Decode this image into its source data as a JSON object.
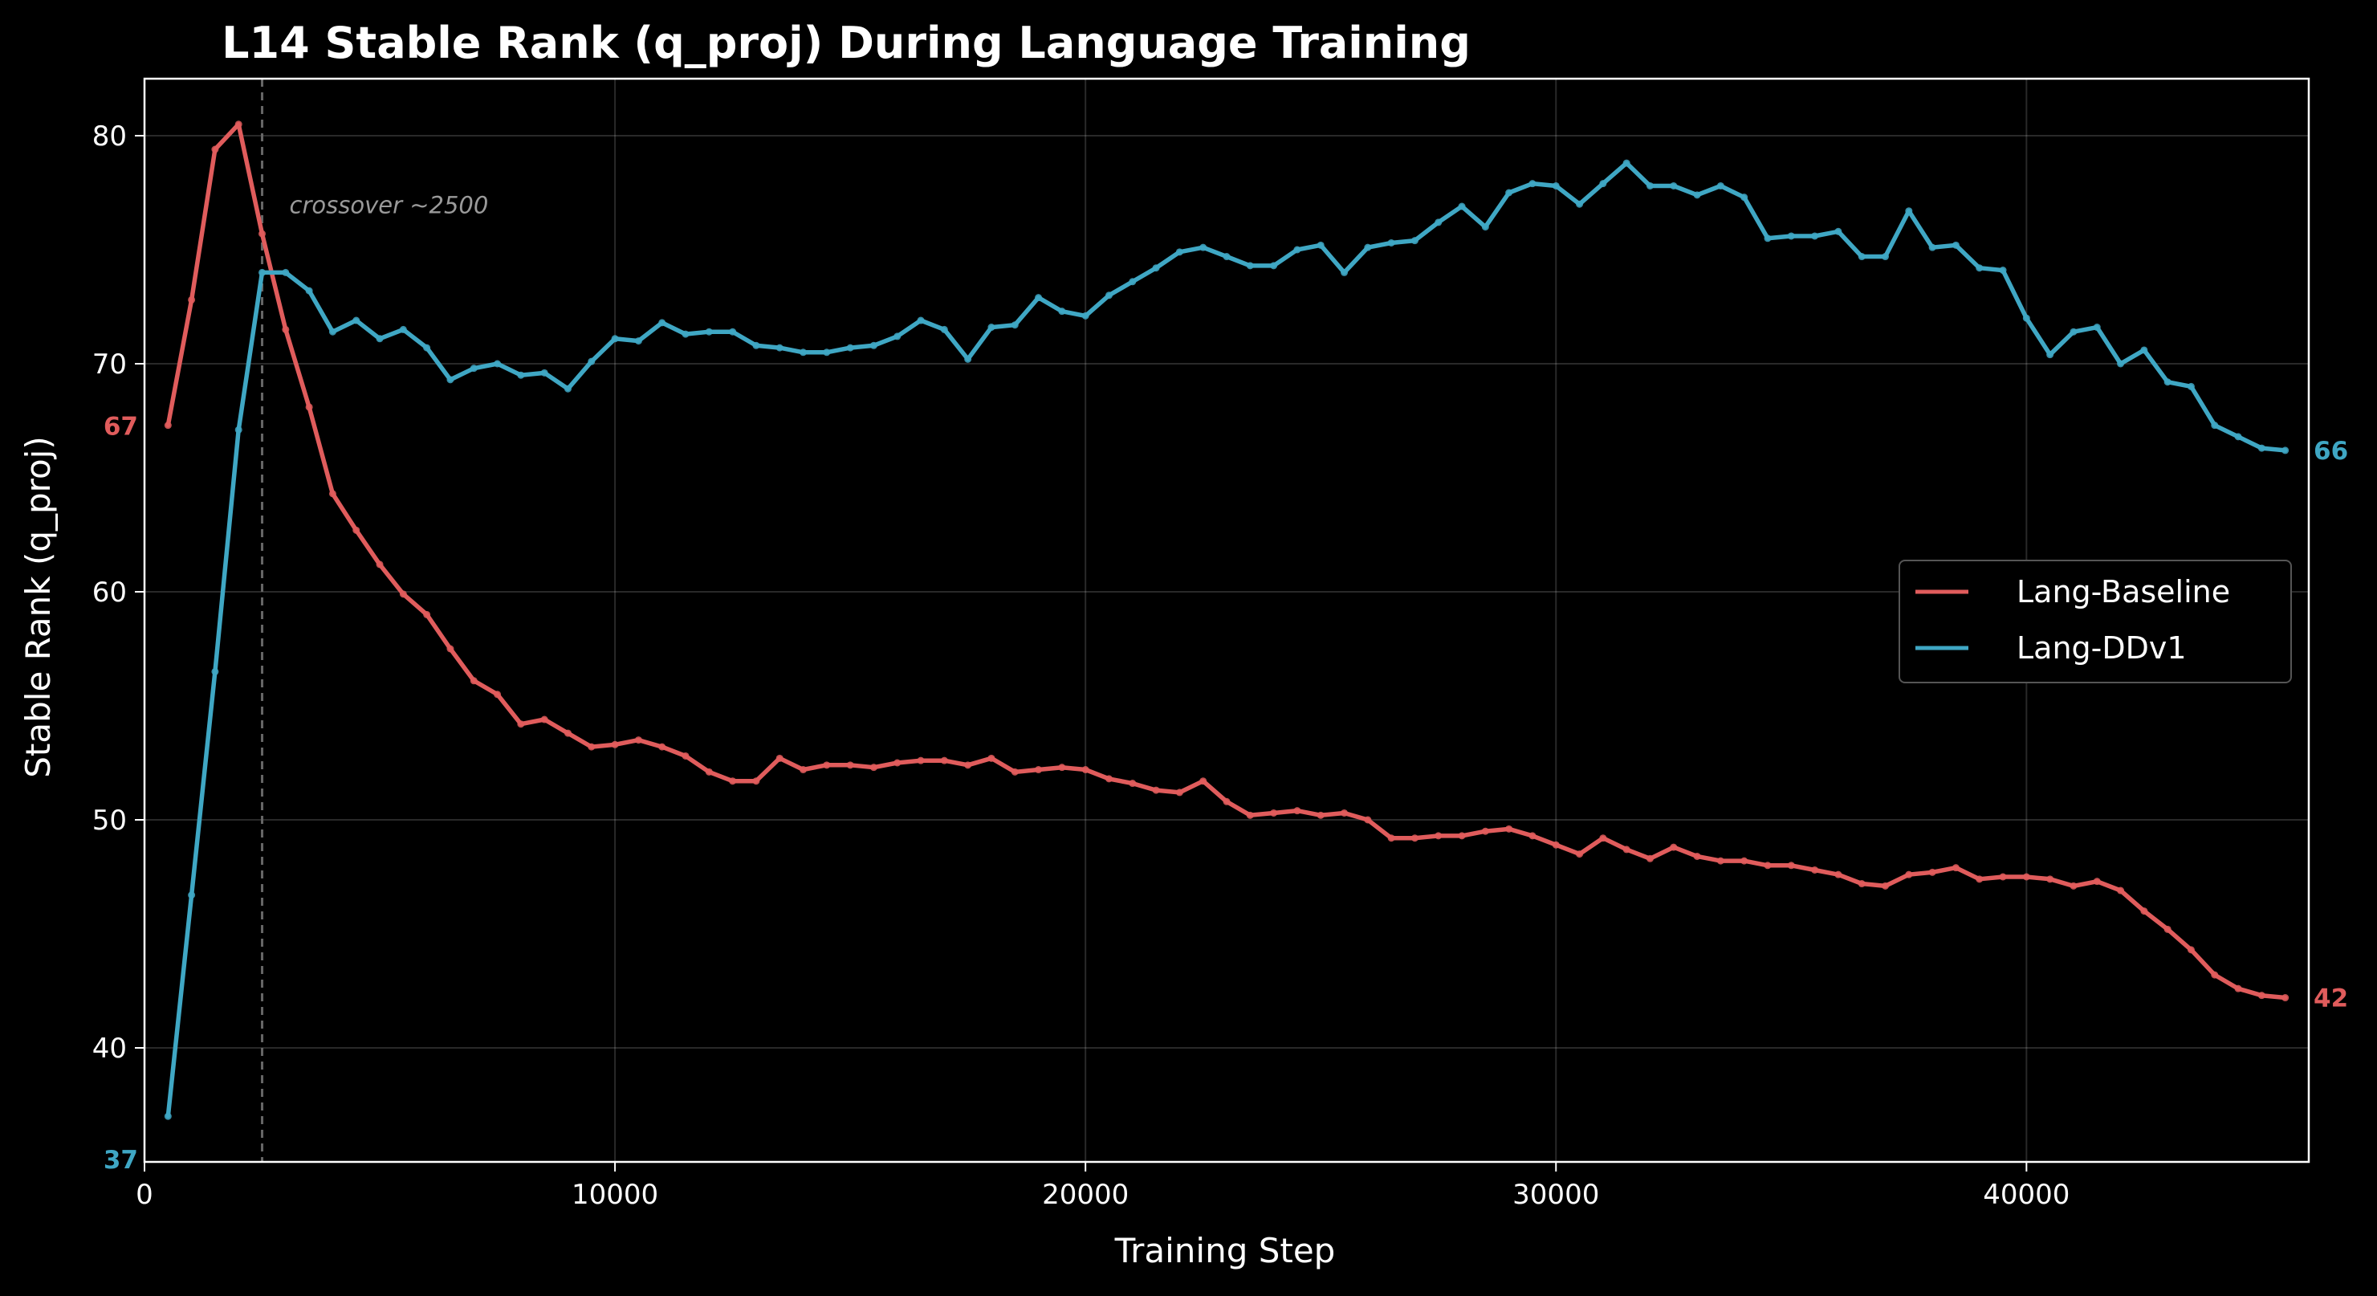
{
  "chart_data": {
    "type": "line",
    "title": "L14 Stable Rank (q_proj) During Language Training",
    "xlabel": "Training Step",
    "ylabel": "Stable Rank (q_proj)",
    "xlim": [
      0,
      46000
    ],
    "ylim": [
      35,
      82.5
    ],
    "xticks": [
      0,
      10000,
      20000,
      30000,
      40000
    ],
    "xtick_labels": [
      "0",
      "10000",
      "20000",
      "30000",
      "40000"
    ],
    "yticks": [
      40,
      50,
      60,
      70,
      80
    ],
    "ytick_labels": [
      "40",
      "50",
      "60",
      "70",
      "80"
    ],
    "grid": true,
    "legend": "center-right",
    "annotation": {
      "text": "crossover ~2500",
      "x": 2500
    },
    "start_labels": [
      "67",
      "37"
    ],
    "end_labels": [
      "42",
      "66"
    ],
    "series": [
      {
        "name": "Lang-Baseline",
        "color": "#e05c5c",
        "x": [
          500,
          1000,
          1500,
          2000,
          2500,
          3000,
          3500,
          4000,
          4500,
          5000,
          5500,
          6000,
          6500,
          7000,
          7500,
          8000,
          8500,
          9000,
          9500,
          10000,
          10500,
          11000,
          11500,
          12000,
          12500,
          13000,
          13500,
          14000,
          14500,
          15000,
          15500,
          16000,
          16500,
          17000,
          17500,
          18000,
          18500,
          19000,
          19500,
          20000,
          20500,
          21000,
          21500,
          22000,
          22500,
          23000,
          23500,
          24000,
          24500,
          25000,
          25500,
          26000,
          26500,
          27000,
          27500,
          28000,
          28500,
          29000,
          29500,
          30000,
          30500,
          31000,
          31500,
          32000,
          32500,
          33000,
          33500,
          34000,
          34500,
          35000,
          35500,
          36000,
          36500,
          37000,
          37500,
          38000,
          38500,
          39000,
          39500,
          40000,
          40500,
          41000,
          41500,
          42000,
          42500,
          43000,
          43500,
          44000,
          44500,
          45000,
          45500
        ],
        "y": [
          67.3,
          72.8,
          79.4,
          80.5,
          75.7,
          71.5,
          68.1,
          64.3,
          62.7,
          61.2,
          59.9,
          59.0,
          57.5,
          56.1,
          55.5,
          54.2,
          54.4,
          53.8,
          53.2,
          53.3,
          53.5,
          53.2,
          52.8,
          52.1,
          51.7,
          51.7,
          52.7,
          52.2,
          52.4,
          52.4,
          52.3,
          52.5,
          52.6,
          52.6,
          52.4,
          52.7,
          52.1,
          52.2,
          52.3,
          52.2,
          51.8,
          51.6,
          51.3,
          51.2,
          51.7,
          50.8,
          50.2,
          50.3,
          50.4,
          50.2,
          50.3,
          50.0,
          49.2,
          49.2,
          49.3,
          49.3,
          49.5,
          49.6,
          49.3,
          48.9,
          48.5,
          49.2,
          48.7,
          48.3,
          48.8,
          48.4,
          48.2,
          48.2,
          48.0,
          48.0,
          47.8,
          47.6,
          47.2,
          47.1,
          47.6,
          47.7,
          47.9,
          47.4,
          47.5,
          47.5,
          47.4,
          47.1,
          47.3,
          46.9,
          46.0,
          45.2,
          44.3,
          43.2,
          42.6,
          42.3,
          42.2
        ]
      },
      {
        "name": "Lang-DDv1",
        "color": "#3fa7c4",
        "x": [
          500,
          1000,
          1500,
          2000,
          2500,
          3000,
          3500,
          4000,
          4500,
          5000,
          5500,
          6000,
          6500,
          7000,
          7500,
          8000,
          8500,
          9000,
          9500,
          10000,
          10500,
          11000,
          11500,
          12000,
          12500,
          13000,
          13500,
          14000,
          14500,
          15000,
          15500,
          16000,
          16500,
          17000,
          17500,
          18000,
          18500,
          19000,
          19500,
          20000,
          20500,
          21000,
          21500,
          22000,
          22500,
          23000,
          23500,
          24000,
          24500,
          25000,
          25500,
          26000,
          26500,
          27000,
          27500,
          28000,
          28500,
          29000,
          29500,
          30000,
          30500,
          31000,
          31500,
          32000,
          32500,
          33000,
          33500,
          34000,
          34500,
          35000,
          35500,
          36000,
          36500,
          37000,
          37500,
          38000,
          38500,
          39000,
          39500,
          40000,
          40500,
          41000,
          41500,
          42000,
          42500,
          43000,
          43500,
          44000,
          44500,
          45000,
          45500
        ],
        "y": [
          37.0,
          46.7,
          56.5,
          67.1,
          74.0,
          74.0,
          73.2,
          71.4,
          71.9,
          71.1,
          71.5,
          70.7,
          69.3,
          69.8,
          70.0,
          69.5,
          69.6,
          68.9,
          70.1,
          71.1,
          71.0,
          71.8,
          71.3,
          71.4,
          71.4,
          70.8,
          70.7,
          70.5,
          70.5,
          70.7,
          70.8,
          71.2,
          71.9,
          71.5,
          70.2,
          71.6,
          71.7,
          72.9,
          72.3,
          72.1,
          73.0,
          73.6,
          74.2,
          74.9,
          75.1,
          74.7,
          74.3,
          74.3,
          75.0,
          75.2,
          74.0,
          75.1,
          75.3,
          75.4,
          76.2,
          76.9,
          76.0,
          77.5,
          77.9,
          77.8,
          77.0,
          77.9,
          78.8,
          77.8,
          77.8,
          77.4,
          77.8,
          77.3,
          75.5,
          75.6,
          75.6,
          75.8,
          74.7,
          74.7,
          76.7,
          75.1,
          75.2,
          74.2,
          74.1,
          72.0,
          70.4,
          71.4,
          71.6,
          70.0,
          70.6,
          69.2,
          69.0,
          67.3,
          66.8,
          66.3,
          66.2
        ]
      }
    ]
  }
}
